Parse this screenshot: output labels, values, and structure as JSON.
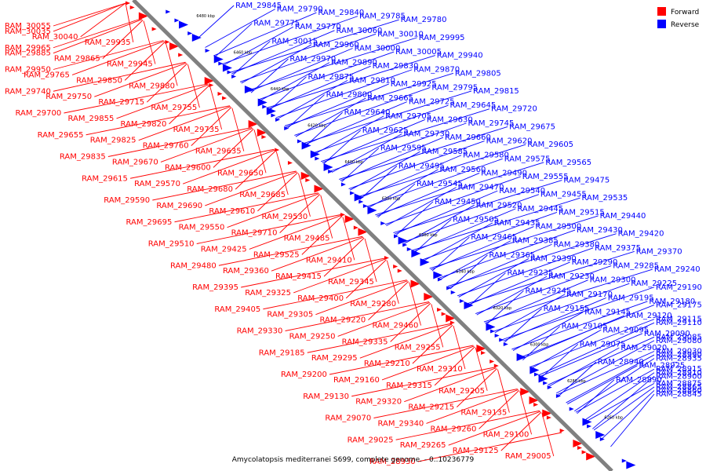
{
  "caption": "Amycolatopsis mediterranei S699, complete genome. - 0..10236779",
  "colors": {
    "forward": "#ff0000",
    "reverse": "#0000ff",
    "axis": "#808080"
  },
  "legend": [
    {
      "label": "Forward",
      "color": "#ff0000"
    },
    {
      "label": "Reverse",
      "color": "#0000ff"
    }
  ],
  "ticks": [
    "6480 kbp",
    "6460 kbp",
    "6440 kbp",
    "6420 kbp",
    "6400 kbp",
    "6380 kbp",
    "6360 kbp",
    "6340 kbp",
    "6320 kbp",
    "6300 kbp",
    "6280 kbp",
    "6260 kbp"
  ],
  "red_labels": [
    "RAM_30055",
    "RAM_30035",
    "RAM_30040",
    "RAM_29935",
    "RAM_29965",
    "RAM_29885",
    "RAM_29865",
    "RAM_29945",
    "RAM_29950",
    "RAM_29765",
    "RAM_29850",
    "RAM_29880",
    "RAM_29740",
    "RAM_29750",
    "RAM_29715",
    "RAM_29755",
    "RAM_29700",
    "RAM_29855",
    "RAM_29820",
    "RAM_29735",
    "RAM_29655",
    "RAM_29825",
    "RAM_29760",
    "RAM_29635",
    "RAM_29835",
    "RAM_29670",
    "RAM_29600",
    "RAM_29650",
    "RAM_29615",
    "RAM_29570",
    "RAM_29680",
    "RAM_29685",
    "RAM_29590",
    "RAM_29690",
    "RAM_29610",
    "RAM_29530",
    "RAM_29695",
    "RAM_29550",
    "RAM_29710",
    "RAM_29485",
    "RAM_29510",
    "RAM_29425",
    "RAM_29525",
    "RAM_29410",
    "RAM_29480",
    "RAM_29360",
    "RAM_29415",
    "RAM_29345",
    "RAM_29395",
    "RAM_29325",
    "RAM_29400",
    "RAM_29280",
    "RAM_29405",
    "RAM_29305",
    "RAM_29220",
    "RAM_29460",
    "RAM_29330",
    "RAM_29250",
    "RAM_29335",
    "RAM_29255",
    "RAM_29185",
    "RAM_29295",
    "RAM_29210",
    "RAM_29310",
    "RAM_29200",
    "RAM_29160",
    "RAM_29315",
    "RAM_29205",
    "RAM_29130",
    "RAM_29320",
    "RAM_29215",
    "RAM_29135",
    "RAM_29070",
    "RAM_29340",
    "RAM_29260",
    "RAM_29100",
    "RAM_29025",
    "RAM_29265",
    "RAM_29125",
    "RAM_29005",
    "RAM_28930"
  ],
  "blue_labels": [
    "RAM_29845",
    "RAM_29790",
    "RAM_29840",
    "RAM_29785",
    "RAM_29780",
    "RAM_29775",
    "RAM_29770",
    "RAM_30060",
    "RAM_30010",
    "RAM_29995",
    "RAM_30015",
    "RAM_29960",
    "RAM_30000",
    "RAM_30005",
    "RAM_29940",
    "RAM_29970",
    "RAM_29890",
    "RAM_29830",
    "RAM_29870",
    "RAM_29805",
    "RAM_29875",
    "RAM_29810",
    "RAM_29925",
    "RAM_29795",
    "RAM_29815",
    "RAM_29800",
    "RAM_29665",
    "RAM_29725",
    "RAM_29645",
    "RAM_29720",
    "RAM_29640",
    "RAM_29705",
    "RAM_29630",
    "RAM_29745",
    "RAM_29675",
    "RAM_29625",
    "RAM_29730",
    "RAM_29660",
    "RAM_29620",
    "RAM_29605",
    "RAM_29595",
    "RAM_29585",
    "RAM_29580",
    "RAM_29575",
    "RAM_29565",
    "RAM_29495",
    "RAM_29560",
    "RAM_29490",
    "RAM_29555",
    "RAM_29475",
    "RAM_29545",
    "RAM_29470",
    "RAM_29540",
    "RAM_29455",
    "RAM_29535",
    "RAM_29450",
    "RAM_29520",
    "RAM_29445",
    "RAM_29515",
    "RAM_29440",
    "RAM_29505",
    "RAM_29435",
    "RAM_29500",
    "RAM_29430",
    "RAM_29420",
    "RAM_29465",
    "RAM_29385",
    "RAM_29380",
    "RAM_29375",
    "RAM_29370",
    "RAM_29365",
    "RAM_29390",
    "RAM_29290",
    "RAM_29285",
    "RAM_29240",
    "RAM_29235",
    "RAM_29230",
    "RAM_29300",
    "RAM_29225",
    "RAM_29190",
    "RAM_29245",
    "RAM_29170",
    "RAM_29195",
    "RAM_29180",
    "RAM_29175",
    "RAM_29155",
    "RAM_29145",
    "RAM_29120",
    "RAM_29115",
    "RAM_29110",
    "RAM_29105",
    "RAM_29095",
    "RAM_29090",
    "RAM_29085",
    "RAM_29080",
    "RAM_29075",
    "RAM_29020",
    "RAM_29030",
    "RAM_28990",
    "RAM_28935",
    "RAM_28940",
    "RAM_28925",
    "RAM_28915",
    "RAM_28910",
    "RAM_28900",
    "RAM_28890",
    "RAM_28875",
    "RAM_28865",
    "RAM_28860",
    "RAM_28845"
  ]
}
